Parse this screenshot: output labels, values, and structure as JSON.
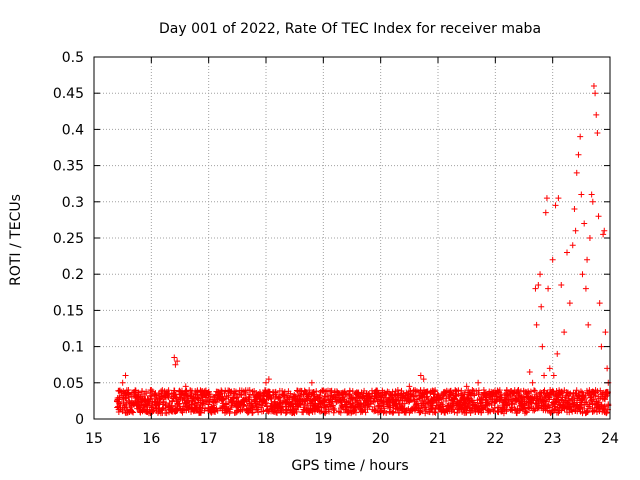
{
  "chart_data": {
    "type": "scatter",
    "title": "Day 001 of 2022, Rate Of TEC Index for receiver maba",
    "xlabel": "GPS time / hours",
    "ylabel": "ROTI / TECUs",
    "xlim": [
      15,
      24
    ],
    "ylim": [
      0,
      0.5
    ],
    "x_ticks": [
      "15",
      "16",
      "17",
      "18",
      "19",
      "20",
      "21",
      "22",
      "23",
      "24"
    ],
    "y_ticks": [
      "0",
      "0.05",
      "0.1",
      "0.15",
      "0.2",
      "0.25",
      "0.3",
      "0.35",
      "0.4",
      "0.45",
      "0.5"
    ],
    "x_tick_values": [
      15,
      16,
      17,
      18,
      19,
      20,
      21,
      22,
      23,
      24
    ],
    "y_tick_values": [
      0,
      0.05,
      0.1,
      0.15,
      0.2,
      0.25,
      0.3,
      0.35,
      0.4,
      0.45,
      0.5
    ],
    "grid": true,
    "marker": "+",
    "marker_color": "#ff0000",
    "series": [
      {
        "name": "ROTI",
        "points": [
          [
            15.45,
            0.03
          ],
          [
            15.5,
            0.05
          ],
          [
            15.55,
            0.06
          ],
          [
            15.6,
            0.04
          ],
          [
            15.7,
            0.02
          ],
          [
            15.8,
            0.03
          ],
          [
            15.9,
            0.025
          ],
          [
            16.0,
            0.04
          ],
          [
            16.1,
            0.03
          ],
          [
            16.2,
            0.02
          ],
          [
            16.3,
            0.035
          ],
          [
            16.4,
            0.085
          ],
          [
            16.42,
            0.075
          ],
          [
            16.45,
            0.08
          ],
          [
            16.5,
            0.03
          ],
          [
            16.6,
            0.045
          ],
          [
            16.7,
            0.02
          ],
          [
            16.8,
            0.03
          ],
          [
            16.9,
            0.025
          ],
          [
            17.0,
            0.02
          ],
          [
            17.1,
            0.03
          ],
          [
            17.2,
            0.035
          ],
          [
            17.3,
            0.02
          ],
          [
            17.4,
            0.025
          ],
          [
            17.5,
            0.03
          ],
          [
            17.6,
            0.02
          ],
          [
            17.7,
            0.03
          ],
          [
            17.8,
            0.025
          ],
          [
            17.9,
            0.035
          ],
          [
            18.0,
            0.05
          ],
          [
            18.05,
            0.055
          ],
          [
            18.1,
            0.03
          ],
          [
            18.2,
            0.02
          ],
          [
            18.3,
            0.025
          ],
          [
            18.4,
            0.02
          ],
          [
            18.5,
            0.03
          ],
          [
            18.6,
            0.025
          ],
          [
            18.7,
            0.035
          ],
          [
            18.8,
            0.05
          ],
          [
            18.9,
            0.03
          ],
          [
            19.0,
            0.025
          ],
          [
            19.1,
            0.02
          ],
          [
            19.2,
            0.03
          ],
          [
            19.3,
            0.025
          ],
          [
            19.4,
            0.02
          ],
          [
            19.5,
            0.03
          ],
          [
            19.6,
            0.025
          ],
          [
            19.7,
            0.035
          ],
          [
            19.8,
            0.03
          ],
          [
            19.9,
            0.025
          ],
          [
            20.0,
            0.03
          ],
          [
            20.1,
            0.035
          ],
          [
            20.2,
            0.03
          ],
          [
            20.3,
            0.04
          ],
          [
            20.4,
            0.035
          ],
          [
            20.5,
            0.045
          ],
          [
            20.6,
            0.04
          ],
          [
            20.7,
            0.06
          ],
          [
            20.75,
            0.055
          ],
          [
            20.8,
            0.03
          ],
          [
            20.9,
            0.025
          ],
          [
            21.0,
            0.03
          ],
          [
            21.1,
            0.035
          ],
          [
            21.2,
            0.03
          ],
          [
            21.3,
            0.04
          ],
          [
            21.4,
            0.035
          ],
          [
            21.5,
            0.045
          ],
          [
            21.6,
            0.04
          ],
          [
            21.7,
            0.05
          ],
          [
            21.8,
            0.04
          ],
          [
            21.9,
            0.03
          ],
          [
            22.0,
            0.035
          ],
          [
            22.1,
            0.03
          ],
          [
            22.2,
            0.04
          ],
          [
            22.3,
            0.035
          ],
          [
            22.4,
            0.04
          ],
          [
            22.5,
            0.03
          ],
          [
            22.6,
            0.065
          ],
          [
            22.65,
            0.05
          ],
          [
            22.7,
            0.18
          ],
          [
            22.72,
            0.13
          ],
          [
            22.75,
            0.185
          ],
          [
            22.78,
            0.2
          ],
          [
            22.8,
            0.155
          ],
          [
            22.82,
            0.1
          ],
          [
            22.85,
            0.06
          ],
          [
            22.88,
            0.285
          ],
          [
            22.9,
            0.305
          ],
          [
            22.92,
            0.18
          ],
          [
            22.95,
            0.07
          ],
          [
            23.0,
            0.22
          ],
          [
            23.02,
            0.06
          ],
          [
            23.05,
            0.295
          ],
          [
            23.08,
            0.09
          ],
          [
            23.1,
            0.305
          ],
          [
            23.15,
            0.185
          ],
          [
            23.2,
            0.12
          ],
          [
            23.25,
            0.23
          ],
          [
            23.3,
            0.16
          ],
          [
            23.35,
            0.24
          ],
          [
            23.38,
            0.29
          ],
          [
            23.4,
            0.26
          ],
          [
            23.42,
            0.34
          ],
          [
            23.45,
            0.365
          ],
          [
            23.48,
            0.39
          ],
          [
            23.5,
            0.31
          ],
          [
            23.52,
            0.2
          ],
          [
            23.55,
            0.27
          ],
          [
            23.58,
            0.18
          ],
          [
            23.6,
            0.22
          ],
          [
            23.62,
            0.13
          ],
          [
            23.65,
            0.25
          ],
          [
            23.68,
            0.31
          ],
          [
            23.7,
            0.3
          ],
          [
            23.72,
            0.46
          ],
          [
            23.74,
            0.45
          ],
          [
            23.76,
            0.42
          ],
          [
            23.78,
            0.395
          ],
          [
            23.8,
            0.28
          ],
          [
            23.82,
            0.16
          ],
          [
            23.85,
            0.1
          ],
          [
            23.88,
            0.255
          ],
          [
            23.9,
            0.26
          ],
          [
            23.92,
            0.12
          ],
          [
            23.95,
            0.07
          ],
          [
            23.97,
            0.05
          ]
        ]
      }
    ]
  }
}
